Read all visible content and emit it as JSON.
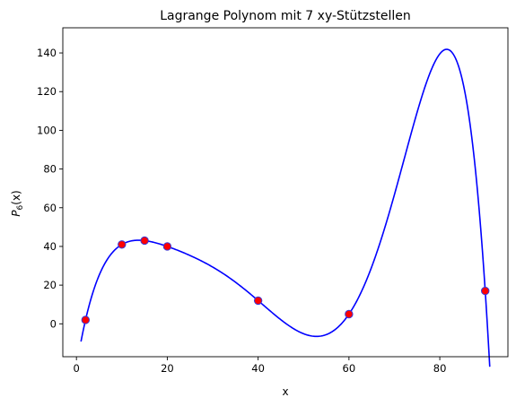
{
  "chart_data": {
    "type": "line",
    "title": "Lagrange Polynom mit 7 xy-Stützstellen",
    "xlabel": "x",
    "ylabel_base": "P",
    "ylabel_sub": "6",
    "ylabel_arg": "(x)",
    "xlim": [
      -3,
      95
    ],
    "ylim": [
      -17,
      153
    ],
    "x_ticks": [
      0,
      20,
      40,
      60,
      80
    ],
    "y_ticks": [
      0,
      20,
      40,
      60,
      80,
      100,
      120,
      140
    ],
    "grid": false,
    "curve_x_range": [
      1,
      91
    ],
    "series": [
      {
        "kind": "polynomial-curve",
        "color": "#0000ff"
      },
      {
        "kind": "points",
        "color": "#ff0000",
        "edge_color": "#3a3ad8",
        "x": [
          2,
          10,
          15,
          20,
          40,
          60,
          90
        ],
        "y": [
          2,
          41,
          43,
          40,
          12,
          5,
          17
        ]
      }
    ]
  }
}
